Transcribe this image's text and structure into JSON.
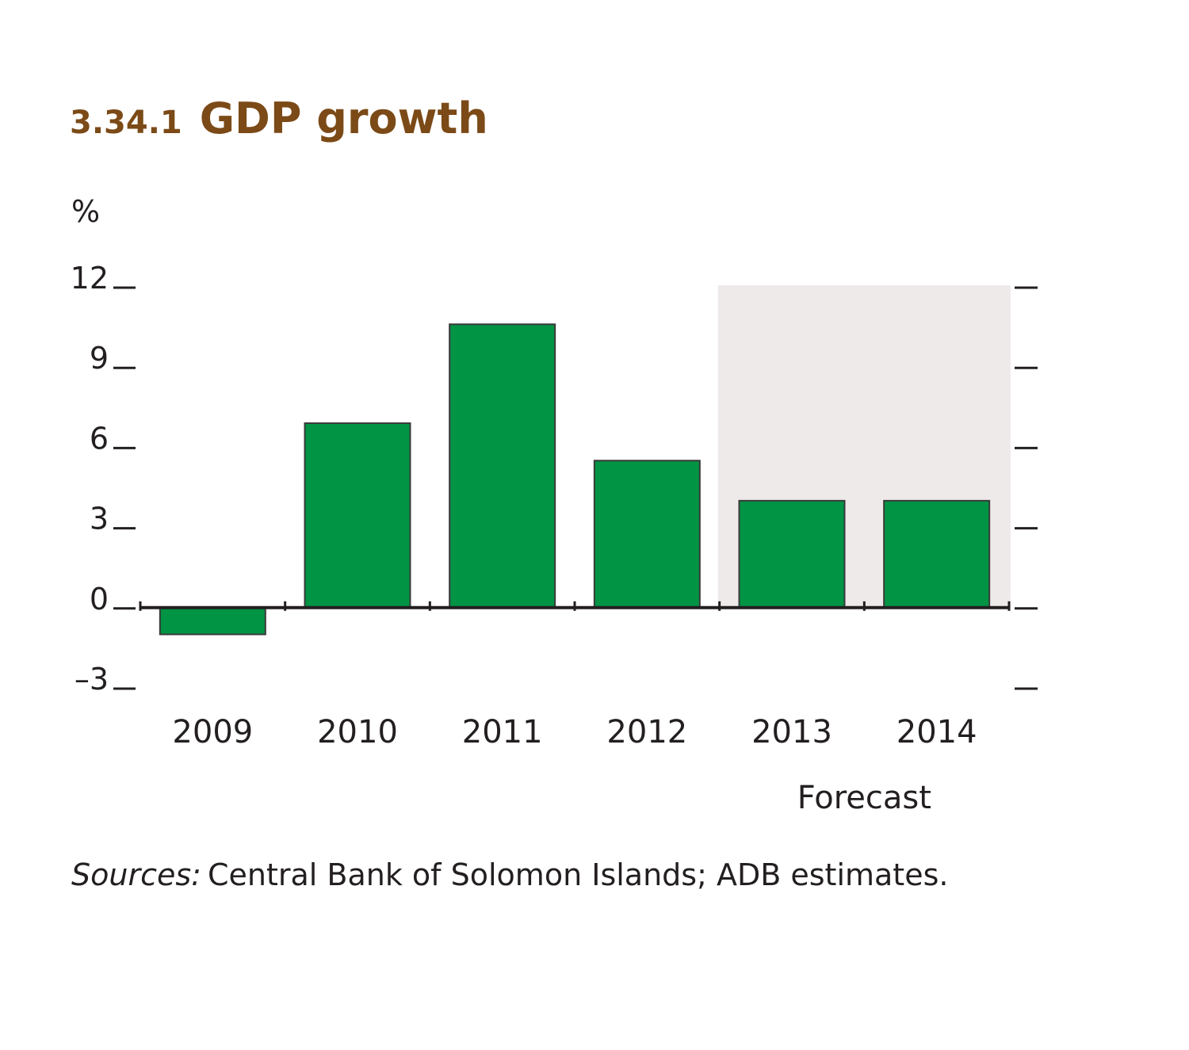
{
  "chart_data": {
    "type": "bar",
    "figure_number": "3.34.1",
    "title": "GDP growth",
    "ylabel": "%",
    "xlabel": "",
    "categories": [
      "2009",
      "2010",
      "2011",
      "2012",
      "2013",
      "2014"
    ],
    "values": [
      -1.0,
      6.9,
      10.6,
      5.5,
      4.0,
      4.0
    ],
    "ylim": [
      -3,
      12
    ],
    "yticks": [
      12,
      9,
      6,
      3,
      0,
      -3
    ],
    "ytick_labels": [
      "12",
      "9",
      "6",
      "3",
      "0",
      "–3"
    ],
    "forecast_categories": [
      "2013",
      "2014"
    ],
    "forecast_label": "Forecast",
    "grid": false,
    "colors": {
      "bar": "#009444",
      "forecast_shade": "#eeeaea",
      "title": "#7b4a17",
      "axis": "#231f20"
    }
  },
  "source": {
    "label": "Sources:",
    "text": "Central Bank of Solomon Islands; ADB estimates."
  }
}
